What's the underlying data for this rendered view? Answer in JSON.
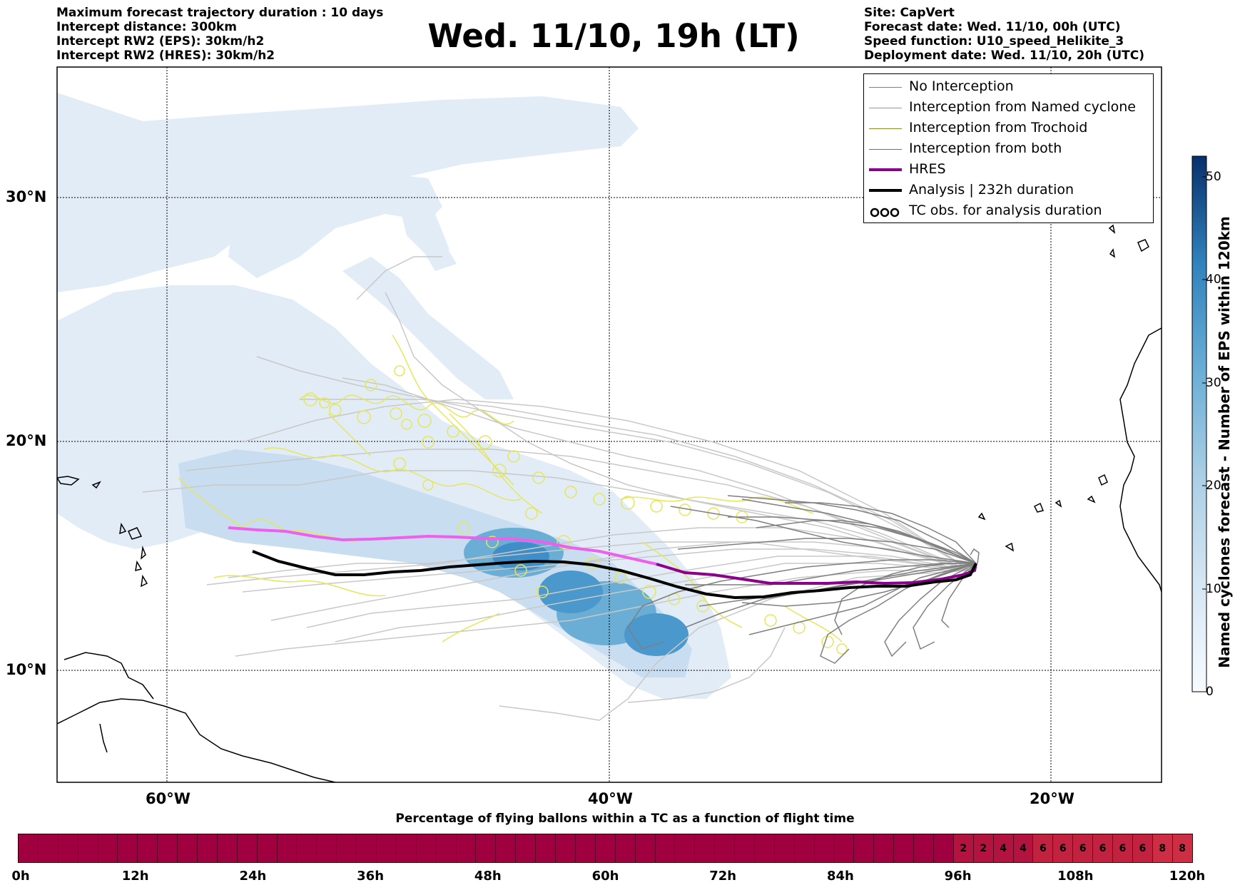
{
  "header": {
    "left_lines": [
      "Maximum forecast trajectory duration : 10 days",
      "Intercept distance: 300km",
      "Intercept RW2 (EPS):  30km/h2",
      "Intercept RW2 (HRES): 30km/h2"
    ],
    "title": "Wed. 11/10, 19h (LT)",
    "right_lines": [
      "Site: CapVert",
      "Forecast date: Wed. 11/10, 00h (UTC)",
      "Speed function: U10_speed_Helikite_3",
      "Deployment date: Wed. 11/10, 20h (UTC)"
    ]
  },
  "map": {
    "lat_labels": [
      "30°N",
      "20°N",
      "10°N"
    ],
    "lon_labels": [
      "60°W",
      "40°W",
      "20°W"
    ],
    "colors": {
      "eps_light": "#e1ecf7",
      "eps_mid": "#b5d1ea",
      "eps_dark": "#3f8ec7",
      "no_interception": "#7f7f7f",
      "no_interception_far": "#c8c8c8",
      "trochoid": "#e6e65a",
      "hres": "#ee5fee",
      "hres_dark": "#8b008b",
      "analysis": "#000000"
    }
  },
  "legend": {
    "items": [
      {
        "label": "No Interception",
        "color": "#808080",
        "style": "line"
      },
      {
        "label": "Interception from Named cyclone",
        "color": "#ff6e3c",
        "style": "line"
      },
      {
        "label": "Interception from Trochoid",
        "color": "#8c8a28",
        "style": "line"
      },
      {
        "label": "Interception from both",
        "color": "#2ca02c",
        "style": "line"
      },
      {
        "label": "HRES",
        "color": "#8b008b",
        "style": "thick"
      },
      {
        "label": "Analysis | 232h duration",
        "color": "#000000",
        "style": "thick"
      },
      {
        "label": "TC obs. for analysis duration",
        "color": "#000000",
        "style": "loops"
      }
    ]
  },
  "colorbar": {
    "label": "Named cyclones forecast - Number of EPS within 120km",
    "ticks": [
      "0",
      "10",
      "20",
      "30",
      "40",
      "50"
    ],
    "range": [
      0,
      52
    ]
  },
  "timeline": {
    "title": "Percentage of flying ballons within a TC as a function of flight time",
    "time_labels": [
      "0h",
      "12h",
      "24h",
      "36h",
      "48h",
      "60h",
      "72h",
      "84h",
      "96h",
      "108h",
      "120h"
    ],
    "cells": [
      "",
      "",
      "",
      "",
      "",
      "",
      "",
      "",
      "",
      "",
      "",
      "",
      "",
      "",
      "",
      "",
      "",
      "",
      "",
      "",
      "",
      "",
      "",
      "",
      "",
      "",
      "",
      "",
      "",
      "",
      "",
      "",
      "",
      "",
      "",
      "",
      "",
      "",
      "",
      "",
      "",
      "",
      "",
      "",
      "",
      "",
      "",
      "2",
      "2",
      "4",
      "4",
      "6",
      "6",
      "6",
      "6",
      "6",
      "6",
      "8",
      "8"
    ],
    "color_zero": "#a00040",
    "color_low": "#b3143f",
    "color_mid": "#c0223f",
    "color_high": "#cc2e45"
  }
}
